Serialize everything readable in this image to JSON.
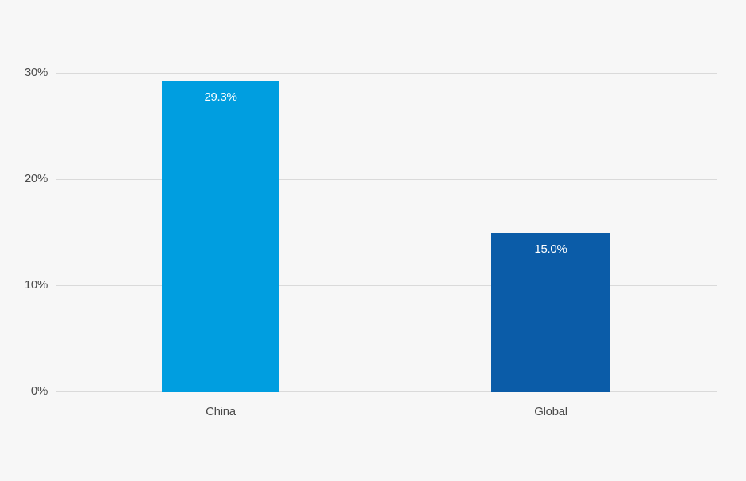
{
  "chart_data": {
    "type": "bar",
    "categories": [
      "China",
      "Global"
    ],
    "values": [
      29.3,
      15.0
    ],
    "value_labels": [
      "29.3%",
      "15.0%"
    ],
    "title": "",
    "xlabel": "",
    "ylabel": "",
    "ylim": [
      0,
      30
    ],
    "yticks": [
      "0%",
      "10%",
      "20%",
      "30%"
    ],
    "grid": true,
    "legend": "none",
    "bar_colors": [
      "#009ee0",
      "#0b5ca8"
    ],
    "background_color": "#f7f7f7",
    "gridline_color": "#dadada",
    "axis_label_color": "#4a4a4a",
    "value_label_color": "#ffffff"
  }
}
